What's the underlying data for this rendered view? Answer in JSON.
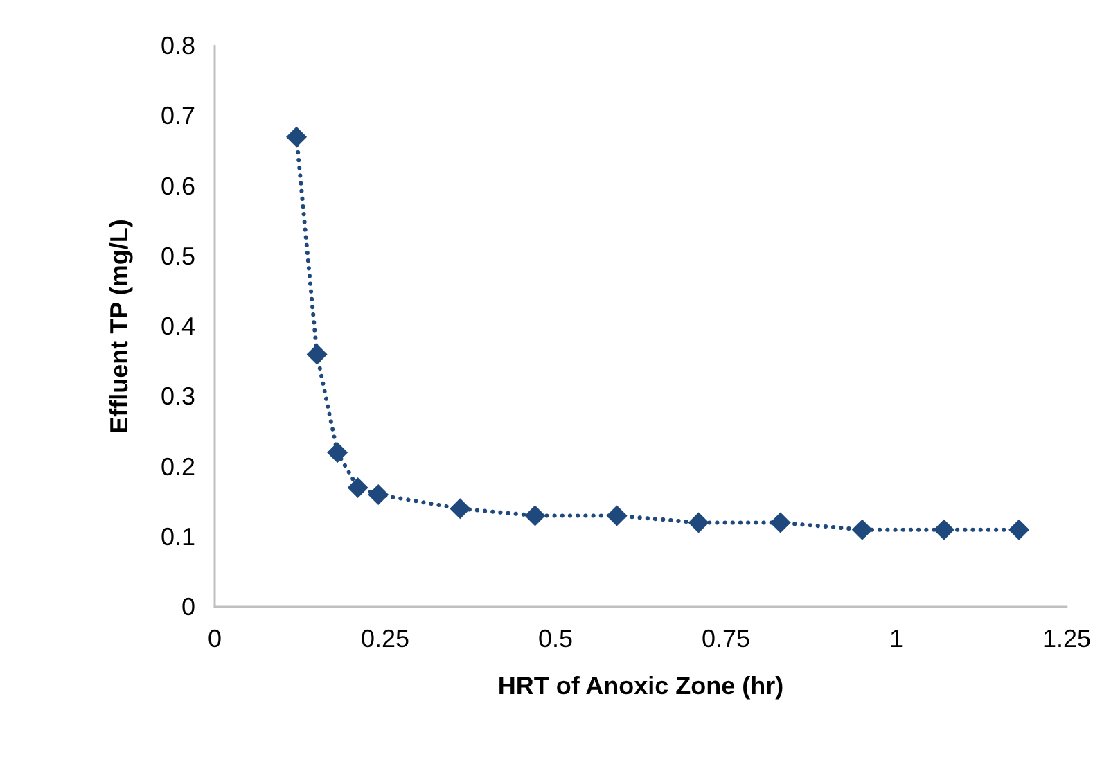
{
  "chart_data": {
    "type": "line",
    "xlabel": "HRT of Anoxic Zone (hr)",
    "ylabel": "Effluent TP (mg/L)",
    "x": [
      0.12,
      0.15,
      0.18,
      0.21,
      0.24,
      0.36,
      0.47,
      0.59,
      0.71,
      0.83,
      0.95,
      1.07,
      1.18
    ],
    "series": [
      {
        "color": "#1f497d",
        "values": [
          0.67,
          0.36,
          0.22,
          0.17,
          0.16,
          0.14,
          0.13,
          0.13,
          0.12,
          0.12,
          0.11,
          0.11,
          0.11
        ]
      }
    ],
    "xlim": [
      0,
      1.25
    ],
    "xticks": [
      0,
      0.25,
      0.5,
      0.75,
      1,
      1.25
    ],
    "ylim": [
      0,
      0.8
    ],
    "yticks": [
      0,
      0.1,
      0.2,
      0.3,
      0.4,
      0.5,
      0.6,
      0.7,
      0.8
    ],
    "grid": false,
    "marker": "diamond",
    "line_style": "dotted"
  }
}
